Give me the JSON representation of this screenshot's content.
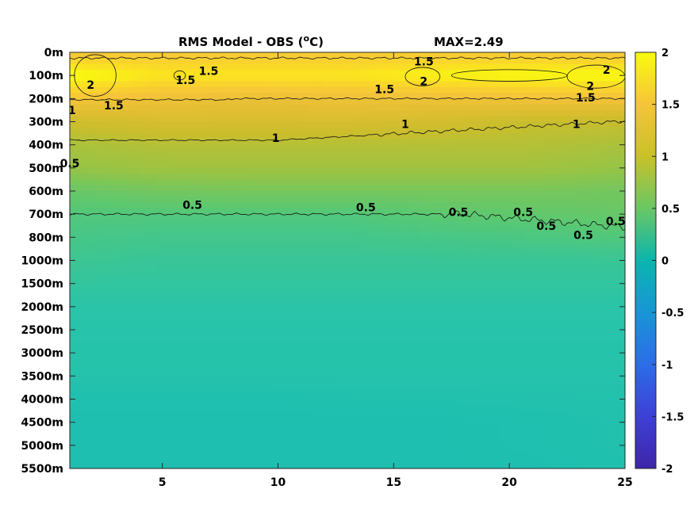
{
  "chart_data": {
    "type": "heatmap",
    "title": "RMS Model - OBS (",
    "title_sup": "o",
    "title_unit": "C)",
    "max_label": "MAX=2.49",
    "x_ticks": [
      5,
      10,
      15,
      20,
      25
    ],
    "x_tick_labels": [
      "5",
      "10",
      "15",
      "20",
      "25"
    ],
    "xlim": [
      1,
      25
    ],
    "y_tick_labels": [
      "0m",
      "100m",
      "200m",
      "300m",
      "400m",
      "500m",
      "600m",
      "700m",
      "800m",
      "1000m",
      "1500m",
      "2000m",
      "2500m",
      "3000m",
      "3500m",
      "4000m",
      "4500m",
      "5000m",
      "5500m"
    ],
    "colorbar": {
      "colormap": "parula",
      "range": [
        -2,
        2
      ],
      "ticks": [
        2,
        1.5,
        1,
        0.5,
        0,
        -0.5,
        -1,
        -1.5,
        -2
      ],
      "tick_labels": [
        "2",
        "1.5",
        "1",
        "0.5",
        "0",
        "-0.5",
        "-1",
        "-1.5",
        "-2"
      ]
    },
    "contour_levels": [
      0.5,
      1,
      1.5,
      2
    ],
    "contour_labels": [
      {
        "text": "2",
        "x": 1.9,
        "depth_index": 1.4
      },
      {
        "text": "1.5",
        "x": 2.9,
        "depth_index": 2.3
      },
      {
        "text": "1.5",
        "x": 6.0,
        "depth_index": 1.2
      },
      {
        "text": "1.5",
        "x": 7.0,
        "depth_index": 0.8
      },
      {
        "text": "1",
        "x": 1.1,
        "depth_index": 2.5
      },
      {
        "text": "0.5",
        "x": 1.0,
        "depth_index": 4.8
      },
      {
        "text": "0.5",
        "x": 6.3,
        "depth_index": 6.6
      },
      {
        "text": "1",
        "x": 9.9,
        "depth_index": 3.7
      },
      {
        "text": "0.5",
        "x": 13.8,
        "depth_index": 6.7
      },
      {
        "text": "1.5",
        "x": 14.6,
        "depth_index": 1.6
      },
      {
        "text": "1.5",
        "x": 16.3,
        "depth_index": 0.4
      },
      {
        "text": "2",
        "x": 16.3,
        "depth_index": 1.25
      },
      {
        "text": "1",
        "x": 15.5,
        "depth_index": 3.1
      },
      {
        "text": "0.5",
        "x": 17.8,
        "depth_index": 6.9
      },
      {
        "text": "0.5",
        "x": 20.6,
        "depth_index": 6.9
      },
      {
        "text": "0.5",
        "x": 21.6,
        "depth_index": 7.5
      },
      {
        "text": "2",
        "x": 24.2,
        "depth_index": 0.75
      },
      {
        "text": "2",
        "x": 23.5,
        "depth_index": 1.45
      },
      {
        "text": "1.5",
        "x": 23.3,
        "depth_index": 1.95
      },
      {
        "text": "1",
        "x": 22.9,
        "depth_index": 3.1
      },
      {
        "text": "0.5",
        "x": 23.2,
        "depth_index": 7.9
      },
      {
        "text": "0.5",
        "x": 24.6,
        "depth_index": 7.3
      }
    ],
    "field_rows": [
      {
        "depth": "0m",
        "values": [
          1.5,
          1.55,
          1.55,
          1.55,
          1.55,
          1.55,
          1.5
        ]
      },
      {
        "depth": "100m",
        "values": [
          2.05,
          1.85,
          1.85,
          1.85,
          1.95,
          2.0,
          2.0
        ]
      },
      {
        "depth": "200m",
        "values": [
          1.5,
          1.4,
          1.35,
          1.4,
          1.4,
          1.45,
          1.45
        ]
      },
      {
        "depth": "300m",
        "values": [
          1.05,
          1.15,
          1.15,
          1.15,
          1.1,
          1.0,
          1.0
        ]
      },
      {
        "depth": "400m",
        "values": [
          0.85,
          0.9,
          0.9,
          0.9,
          0.9,
          0.9,
          0.85
        ]
      },
      {
        "depth": "500m",
        "values": [
          0.75,
          0.8,
          0.8,
          0.8,
          0.8,
          0.8,
          0.75
        ]
      },
      {
        "depth": "600m",
        "values": [
          0.55,
          0.6,
          0.62,
          0.62,
          0.62,
          0.62,
          0.6
        ]
      },
      {
        "depth": "700m",
        "values": [
          0.45,
          0.45,
          0.45,
          0.45,
          0.5,
          0.52,
          0.55
        ]
      },
      {
        "depth": "800m",
        "values": [
          0.4,
          0.38,
          0.38,
          0.38,
          0.4,
          0.42,
          0.45
        ]
      },
      {
        "depth": "1000m",
        "values": [
          0.35,
          0.33,
          0.33,
          0.33,
          0.33,
          0.33,
          0.33
        ]
      },
      {
        "depth": "1500m",
        "values": [
          0.3,
          0.3,
          0.3,
          0.3,
          0.3,
          0.3,
          0.3
        ]
      },
      {
        "depth": "2000m",
        "values": [
          0.26,
          0.26,
          0.26,
          0.26,
          0.26,
          0.26,
          0.26
        ]
      },
      {
        "depth": "2500m",
        "values": [
          0.24,
          0.24,
          0.24,
          0.24,
          0.24,
          0.24,
          0.24
        ]
      },
      {
        "depth": "3000m",
        "values": [
          0.23,
          0.23,
          0.23,
          0.23,
          0.23,
          0.23,
          0.23
        ]
      },
      {
        "depth": "3500m",
        "values": [
          0.22,
          0.22,
          0.22,
          0.22,
          0.22,
          0.22,
          0.22
        ]
      },
      {
        "depth": "4000m",
        "values": [
          0.16,
          0.16,
          0.16,
          0.17,
          0.18,
          0.19,
          0.2
        ]
      },
      {
        "depth": "4500m",
        "values": [
          0.15,
          0.15,
          0.15,
          0.15,
          0.15,
          0.16,
          0.18
        ]
      },
      {
        "depth": "5000m",
        "values": [
          0.15,
          0.15,
          0.15,
          0.15,
          0.15,
          0.16,
          0.18
        ]
      },
      {
        "depth": "5500m",
        "values": [
          0.15,
          0.15,
          0.15,
          0.15,
          0.15,
          0.15,
          0.17
        ]
      }
    ],
    "field_columns_x": [
      1,
      5,
      9,
      13,
      17,
      21,
      25
    ]
  }
}
